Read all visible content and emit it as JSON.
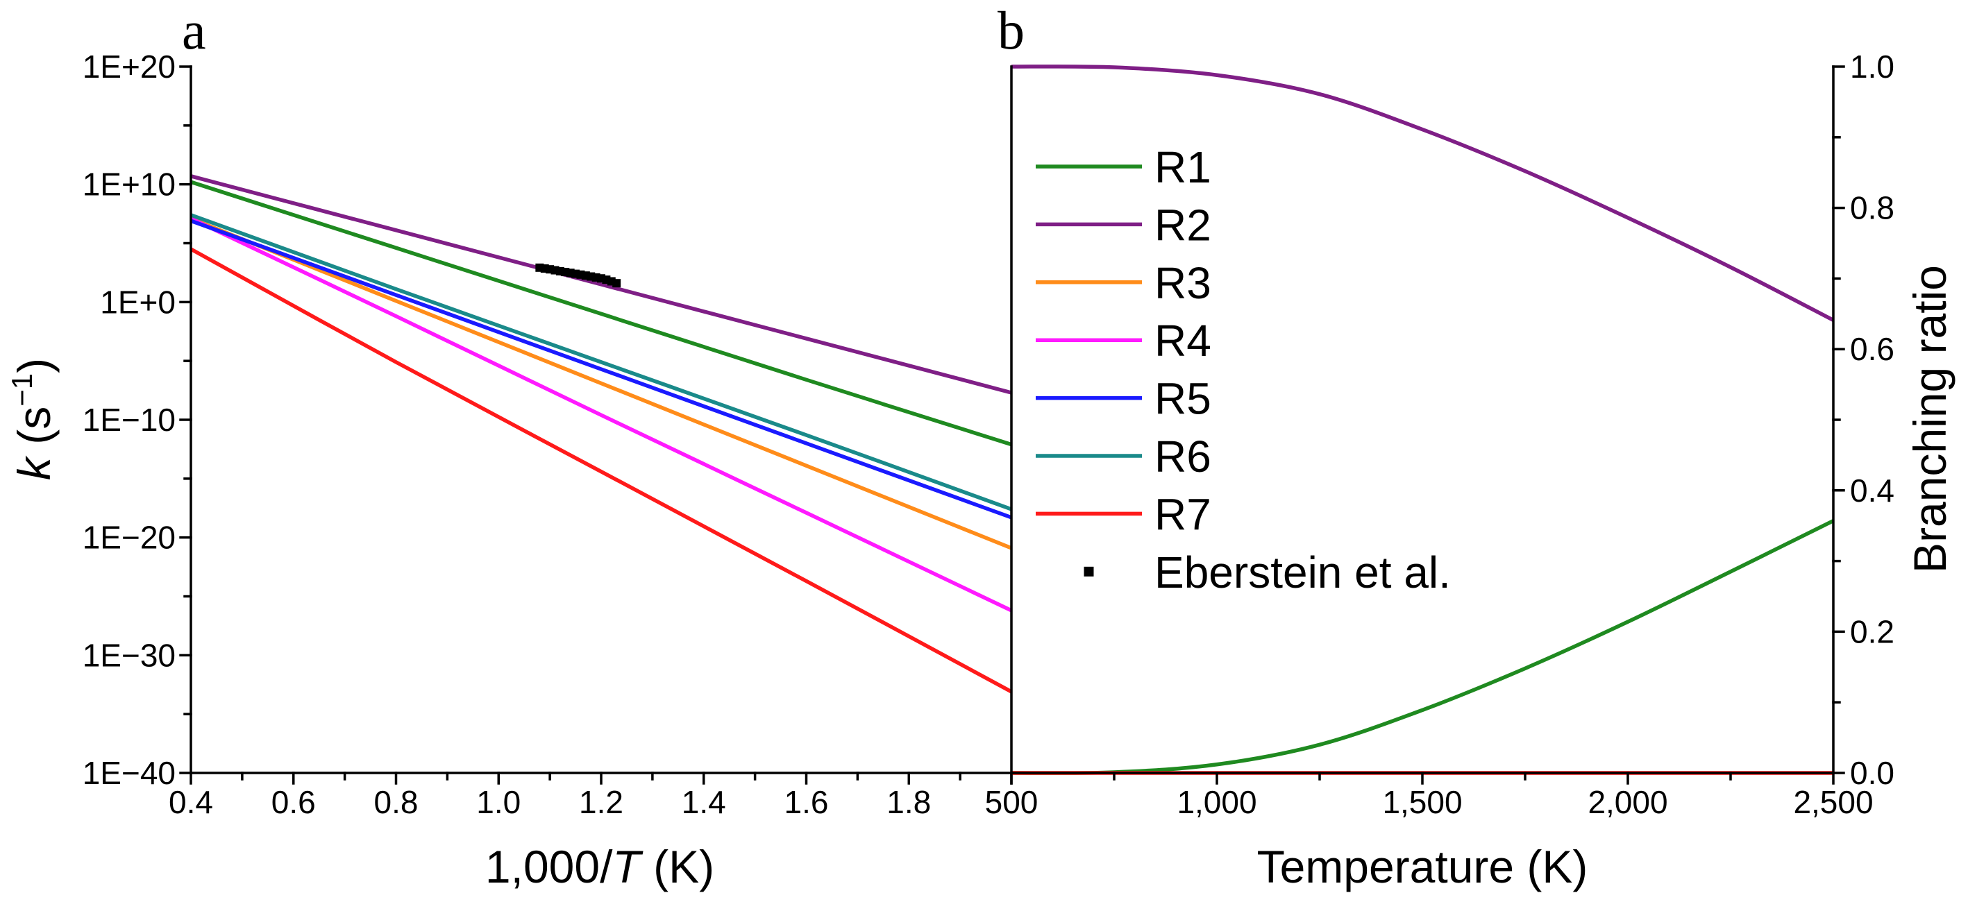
{
  "colors": {
    "R1": "#1f8a20",
    "R2": "#7f1f86",
    "R3": "#ff8c1a",
    "R4": "#ff1aff",
    "R5": "#1a1aff",
    "R6": "#1a8a8a",
    "R7": "#ff1a1a",
    "Eberstein et al.": "#000000",
    "axis": "#000000"
  },
  "chart_data": [
    {
      "panel_label": "a",
      "type": "line",
      "xlabel": {
        "prefix": "1,000/",
        "italic": "T",
        "suffix": " (K)"
      },
      "ylabel": {
        "italic": "k",
        "prefix": " (s",
        "sup": "−1",
        "suffix": ")"
      },
      "x_scale": "linear",
      "y_scale": "log",
      "xlim": [
        0.4,
        2.0
      ],
      "ylim_log10": [
        -40,
        20
      ],
      "xticks": [
        0.4,
        0.6,
        0.8,
        1.0,
        1.2,
        1.4,
        1.6,
        1.8,
        2.0
      ],
      "xtick_labels": [
        "0.4",
        "0.6",
        "0.8",
        "1.0",
        "1.2",
        "1.4",
        "1.6",
        "1.8"
      ],
      "yticks_log10": [
        20,
        10,
        0,
        -10,
        -20,
        -30,
        -40
      ],
      "ytick_labels": [
        "1E+20",
        "1E+10",
        "1E+0",
        "1E−10",
        "1E−20",
        "1E−30",
        "1E−40"
      ],
      "x": [
        0.4,
        0.8,
        1.2,
        1.6,
        2.0
      ],
      "series": [
        {
          "name": "R1",
          "log10_y": [
            10.2,
            4.6,
            -1.0,
            -6.6,
            -12.1
          ]
        },
        {
          "name": "R2",
          "log10_y": [
            10.7,
            6.1,
            1.5,
            -3.1,
            -7.7
          ]
        },
        {
          "name": "R3",
          "log10_y": [
            7.1,
            0.1,
            -6.9,
            -13.9,
            -20.9
          ]
        },
        {
          "name": "R4",
          "log10_y": [
            7.1,
            -1.2,
            -9.6,
            -17.9,
            -26.2
          ]
        },
        {
          "name": "R5",
          "log10_y": [
            6.9,
            0.6,
            -5.7,
            -12.0,
            -18.3
          ]
        },
        {
          "name": "R6",
          "log10_y": [
            7.4,
            1.1,
            -5.1,
            -11.3,
            -17.6
          ]
        },
        {
          "name": "R7",
          "log10_y": [
            4.5,
            -5.1,
            -14.4,
            -23.7,
            -33.1
          ]
        }
      ],
      "scatter": {
        "name": "Eberstein et al.",
        "marker": "square",
        "x": [
          1.08,
          1.09,
          1.1,
          1.11,
          1.12,
          1.13,
          1.14,
          1.15,
          1.16,
          1.17,
          1.18,
          1.19,
          1.2,
          1.21,
          1.22,
          1.23
        ],
        "log10_y": [
          2.92,
          2.85,
          2.78,
          2.7,
          2.62,
          2.55,
          2.48,
          2.4,
          2.33,
          2.25,
          2.17,
          2.09,
          2.01,
          1.9,
          1.76,
          1.6
        ]
      }
    },
    {
      "panel_label": "b",
      "type": "line",
      "xlabel": "Temperature (K)",
      "ylabel": "Branching ratio",
      "y_axis_side": "right",
      "xlim": [
        500,
        2500
      ],
      "ylim": [
        0,
        1
      ],
      "xticks": [
        500,
        1000,
        1500,
        2000,
        2500
      ],
      "xtick_labels": [
        "500",
        "1,000",
        "1,500",
        "2,000",
        "2,500"
      ],
      "yticks": [
        0,
        0.2,
        0.4,
        0.6,
        0.8,
        1.0
      ],
      "ytick_labels": [
        "0.0",
        "0.2",
        "0.4",
        "0.6",
        "0.8",
        "1.0"
      ],
      "x": [
        500,
        750,
        1000,
        1250,
        1500,
        1750,
        2000,
        2250,
        2500
      ],
      "series": [
        {
          "name": "R1",
          "values": [
            0.0,
            0.001,
            0.012,
            0.04,
            0.089,
            0.148,
            0.214,
            0.285,
            0.357
          ]
        },
        {
          "name": "R2",
          "values": [
            1.0,
            0.999,
            0.988,
            0.961,
            0.911,
            0.852,
            0.786,
            0.716,
            0.641
          ]
        },
        {
          "name": "R7",
          "values": [
            0.0,
            0.0,
            0.0,
            0.0,
            0.0,
            0.0,
            0.0,
            0.0,
            0.0
          ]
        }
      ],
      "legend": {
        "position": "upper-left"
      }
    }
  ]
}
